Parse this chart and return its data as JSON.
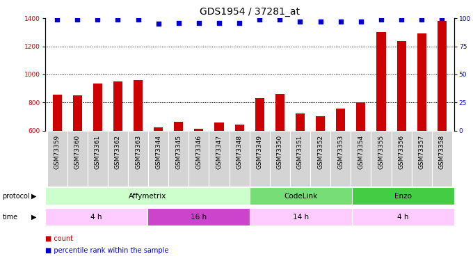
{
  "title": "GDS1954 / 37281_at",
  "samples": [
    "GSM73359",
    "GSM73360",
    "GSM73361",
    "GSM73362",
    "GSM73363",
    "GSM73344",
    "GSM73345",
    "GSM73346",
    "GSM73347",
    "GSM73348",
    "GSM73349",
    "GSM73350",
    "GSM73351",
    "GSM73352",
    "GSM73353",
    "GSM73354",
    "GSM73355",
    "GSM73356",
    "GSM73357",
    "GSM73358"
  ],
  "counts": [
    855,
    850,
    935,
    950,
    960,
    620,
    660,
    610,
    655,
    640,
    830,
    860,
    720,
    700,
    755,
    800,
    1300,
    1240,
    1290,
    1380
  ],
  "percentile_ranks": [
    99,
    99,
    99,
    99,
    99,
    95,
    96,
    96,
    96,
    96,
    99,
    99,
    97,
    97,
    97,
    97,
    99,
    99,
    99,
    100
  ],
  "bar_color": "#CC0000",
  "percentile_color": "#0000CC",
  "ylim_left": [
    600,
    1400
  ],
  "ylim_right": [
    0,
    100
  ],
  "yticks_left": [
    600,
    800,
    1000,
    1200,
    1400
  ],
  "yticks_right": [
    0,
    25,
    50,
    75,
    100
  ],
  "grid_values": [
    800,
    1000,
    1200
  ],
  "protocol_groups": [
    {
      "label": "Affymetrix",
      "start": 0,
      "end": 10,
      "color": "#ccffcc"
    },
    {
      "label": "CodeLink",
      "start": 10,
      "end": 15,
      "color": "#77dd77"
    },
    {
      "label": "Enzo",
      "start": 15,
      "end": 20,
      "color": "#44cc44"
    }
  ],
  "time_groups": [
    {
      "label": "4 h",
      "start": 0,
      "end": 5,
      "color": "#ffccff"
    },
    {
      "label": "16 h",
      "start": 5,
      "end": 10,
      "color": "#cc44cc"
    },
    {
      "label": "14 h",
      "start": 10,
      "end": 15,
      "color": "#ffccff"
    },
    {
      "label": "4 h",
      "start": 15,
      "end": 20,
      "color": "#ffccff"
    }
  ],
  "title_fontsize": 10,
  "tick_fontsize": 6.5,
  "bar_width": 0.45
}
